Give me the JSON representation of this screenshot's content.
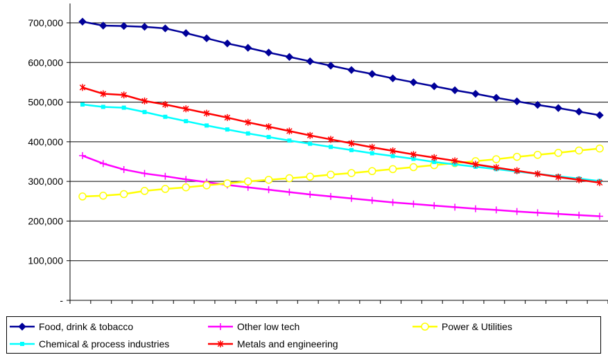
{
  "chart_data": {
    "type": "line",
    "title": "",
    "xlabel": "",
    "ylabel": "",
    "ylim": [
      0,
      700000
    ],
    "yticks": [
      {
        "value": 0,
        "label": "-"
      },
      {
        "value": 100000,
        "label": "100,000"
      },
      {
        "value": 200000,
        "label": "200,000"
      },
      {
        "value": 300000,
        "label": "300,000"
      },
      {
        "value": 400000,
        "label": "400,000"
      },
      {
        "value": 500000,
        "label": "500,000"
      },
      {
        "value": 600000,
        "label": "600,000"
      },
      {
        "value": 700000,
        "label": "700,000"
      }
    ],
    "grid": "horizontal",
    "legend_position": "bottom",
    "series": [
      {
        "name": "Food, drink & tobacco",
        "color": "#000099",
        "marker": "diamond",
        "values": [
          703000,
          693000,
          692000,
          690000,
          686000,
          674000,
          661000,
          648000,
          637000,
          625000,
          614000,
          603000,
          592000,
          581000,
          571000,
          560000,
          550000,
          540000,
          530000,
          521000,
          511000,
          502000,
          493000,
          485000,
          476000,
          467000
        ]
      },
      {
        "name": "Other low tech",
        "color": "#ff00ff",
        "marker": "plus",
        "values": [
          365000,
          345000,
          330000,
          320000,
          313000,
          305000,
          298000,
          291000,
          285000,
          279000,
          273000,
          267000,
          262000,
          257000,
          252000,
          247000,
          243000,
          239000,
          235000,
          231000,
          228000,
          224000,
          221000,
          218000,
          215000,
          212000
        ]
      },
      {
        "name": "Power & Utilities",
        "color": "#ffff00",
        "marker": "circle",
        "values": [
          262000,
          264000,
          268000,
          276000,
          281000,
          285000,
          290000,
          295000,
          300000,
          304000,
          308000,
          312000,
          317000,
          321000,
          326000,
          331000,
          336000,
          341000,
          346000,
          351000,
          356000,
          362000,
          367000,
          372000,
          378000,
          383000
        ]
      },
      {
        "name": "Chemical & process industries",
        "color": "#00ffff",
        "marker": "square",
        "values": [
          494000,
          488000,
          486000,
          475000,
          463000,
          452000,
          441000,
          431000,
          421000,
          412000,
          403000,
          395000,
          387000,
          379000,
          371000,
          364000,
          357000,
          349000,
          343000,
          337000,
          331000,
          325000,
          319000,
          313000,
          307000,
          301000
        ]
      },
      {
        "name": "Metals and engineering",
        "color": "#ff0000",
        "marker": "asterisk",
        "values": [
          537000,
          521000,
          518000,
          503000,
          494000,
          483000,
          472000,
          461000,
          449000,
          438000,
          427000,
          416000,
          406000,
          396000,
          386000,
          377000,
          368000,
          360000,
          352000,
          343000,
          335000,
          327000,
          319000,
          311000,
          304000,
          297000
        ]
      }
    ]
  }
}
